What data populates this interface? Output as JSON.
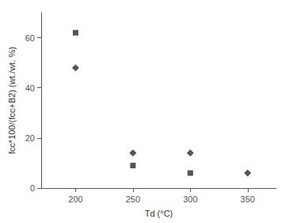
{
  "chart_data": {
    "type": "scatter",
    "xlabel": "Td (°C)",
    "ylabel": "fcc*100/(fcc+B2) (wt./wt. %)",
    "xlim": [
      170,
      375
    ],
    "ylim": [
      0,
      70
    ],
    "xticks": [
      200,
      250,
      300,
      350
    ],
    "yticks": [
      0,
      20,
      40,
      60
    ],
    "grid": false,
    "series": [
      {
        "x": [
          200,
          250,
          300,
          350
        ],
        "values": [
          48,
          14,
          14,
          6
        ],
        "marker": "diamond",
        "color": "#2a2a2a"
      },
      {
        "x": [
          200,
          250,
          300
        ],
        "values": [
          62,
          9,
          6
        ],
        "marker": "square",
        "color": "#2a2a2a"
      }
    ]
  }
}
